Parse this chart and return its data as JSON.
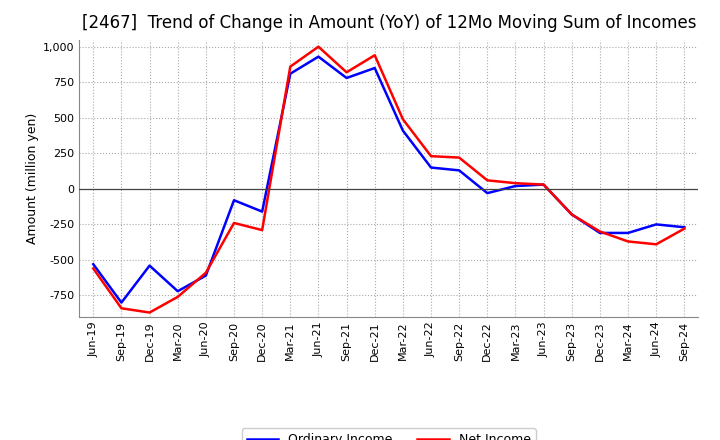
{
  "title": "[2467]  Trend of Change in Amount (YoY) of 12Mo Moving Sum of Incomes",
  "ylabel": "Amount (million yen)",
  "x_labels": [
    "Jun-19",
    "Sep-19",
    "Dec-19",
    "Mar-20",
    "Jun-20",
    "Sep-20",
    "Dec-20",
    "Mar-21",
    "Jun-21",
    "Sep-21",
    "Dec-21",
    "Mar-22",
    "Jun-22",
    "Sep-22",
    "Dec-22",
    "Mar-23",
    "Jun-23",
    "Sep-23",
    "Dec-23",
    "Mar-24",
    "Jun-24",
    "Sep-24"
  ],
  "ordinary_income": [
    -530,
    -800,
    -540,
    -720,
    -610,
    -80,
    -160,
    810,
    930,
    780,
    850,
    410,
    150,
    130,
    -30,
    20,
    30,
    -180,
    -310,
    -310,
    -250,
    -270
  ],
  "net_income": [
    -560,
    -840,
    -870,
    -760,
    -590,
    -240,
    -290,
    860,
    1000,
    820,
    940,
    490,
    230,
    220,
    60,
    40,
    30,
    -180,
    -300,
    -370,
    -390,
    -280
  ],
  "ordinary_income_color": "#0000ff",
  "net_income_color": "#ff0000",
  "background_color": "#ffffff",
  "plot_bg_color": "#ffffff",
  "grid_color": "#aaaaaa",
  "ylim": [
    -900,
    1050
  ],
  "yticks": [
    -750,
    -500,
    -250,
    0,
    250,
    500,
    750,
    1000
  ],
  "legend_labels": [
    "Ordinary Income",
    "Net Income"
  ],
  "line_width": 1.8,
  "title_fontsize": 12,
  "axis_fontsize": 9,
  "tick_fontsize": 8
}
